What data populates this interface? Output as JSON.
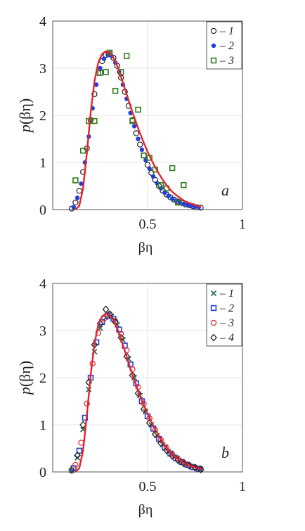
{
  "figure": {
    "y_label_main": "p",
    "y_label_arg": "(βη)",
    "x_label": "βη"
  },
  "chart_data": [
    {
      "type": "scatter",
      "panel_label": "a",
      "xlabel": "βη",
      "ylabel": "p(βη)",
      "xlim": [
        0,
        1
      ],
      "ylim": [
        0,
        4
      ],
      "xticks": [
        "0.5",
        "1"
      ],
      "yticks": [
        "0",
        "1",
        "2",
        "3",
        "4"
      ],
      "grid": true,
      "legend_position": "top-right",
      "series": [
        {
          "name": "1",
          "marker": "open-circle",
          "color": "#222222",
          "x": [
            0.1,
            0.12,
            0.14,
            0.16,
            0.18,
            0.2,
            0.22,
            0.24,
            0.26,
            0.28,
            0.3,
            0.32,
            0.34,
            0.36,
            0.38,
            0.4,
            0.42,
            0.44,
            0.46,
            0.48,
            0.5,
            0.52,
            0.54,
            0.56,
            0.58,
            0.6,
            0.62,
            0.64,
            0.66,
            0.68,
            0.7,
            0.72,
            0.74,
            0.76,
            0.78
          ],
          "y": [
            0.02,
            0.15,
            0.4,
            0.8,
            1.3,
            1.9,
            2.45,
            2.9,
            3.15,
            3.28,
            3.3,
            3.22,
            3.05,
            2.8,
            2.5,
            2.2,
            1.9,
            1.62,
            1.38,
            1.15,
            0.95,
            0.78,
            0.63,
            0.5,
            0.4,
            0.32,
            0.26,
            0.21,
            0.17,
            0.14,
            0.11,
            0.09,
            0.07,
            0.05,
            0.04
          ]
        },
        {
          "name": "2",
          "marker": "filled-dot",
          "color": "#1f3fd6",
          "x": [
            0.11,
            0.13,
            0.15,
            0.17,
            0.19,
            0.21,
            0.23,
            0.25,
            0.27,
            0.29,
            0.31,
            0.33,
            0.35,
            0.37,
            0.39,
            0.41,
            0.43,
            0.45,
            0.47,
            0.49,
            0.51,
            0.53,
            0.55,
            0.57,
            0.59,
            0.61,
            0.63,
            0.65,
            0.67,
            0.69,
            0.71,
            0.73,
            0.75,
            0.77
          ],
          "y": [
            0.05,
            0.25,
            0.55,
            1.0,
            1.55,
            2.15,
            2.65,
            3.0,
            3.2,
            3.28,
            3.26,
            3.12,
            2.92,
            2.65,
            2.35,
            2.05,
            1.77,
            1.5,
            1.27,
            1.05,
            0.87,
            0.7,
            0.56,
            0.45,
            0.36,
            0.29,
            0.23,
            0.19,
            0.15,
            0.12,
            0.1,
            0.08,
            0.06,
            0.05
          ]
        },
        {
          "name": "3",
          "marker": "open-square",
          "color": "#2e7d1e",
          "x": [
            0.12,
            0.16,
            0.19,
            0.22,
            0.25,
            0.28,
            0.3,
            0.33,
            0.36,
            0.39,
            0.42,
            0.45,
            0.48,
            0.51,
            0.54,
            0.57,
            0.6,
            0.63,
            0.66,
            0.69
          ],
          "y": [
            0.62,
            1.25,
            1.88,
            1.88,
            2.9,
            2.92,
            3.33,
            2.52,
            2.92,
            3.26,
            1.88,
            2.12,
            1.15,
            1.1,
            0.85,
            0.52,
            0.45,
            0.88,
            0.15,
            0.52
          ]
        }
      ],
      "fit_curve": {
        "color": "#e0262b",
        "x": [
          0.12,
          0.14,
          0.16,
          0.18,
          0.2,
          0.22,
          0.24,
          0.26,
          0.28,
          0.3,
          0.32,
          0.34,
          0.36,
          0.38,
          0.4,
          0.42,
          0.44,
          0.46,
          0.48,
          0.5,
          0.52,
          0.54,
          0.56,
          0.58,
          0.6,
          0.62,
          0.64,
          0.66,
          0.68,
          0.7,
          0.72,
          0.74,
          0.76,
          0.78
        ],
        "y": [
          0.0,
          0.08,
          0.45,
          1.2,
          2.05,
          2.72,
          3.12,
          3.3,
          3.36,
          3.33,
          3.22,
          3.05,
          2.82,
          2.57,
          2.32,
          2.07,
          1.84,
          1.62,
          1.42,
          1.23,
          1.06,
          0.9,
          0.76,
          0.63,
          0.52,
          0.42,
          0.34,
          0.28,
          0.22,
          0.17,
          0.14,
          0.11,
          0.08,
          0.06
        ]
      }
    },
    {
      "type": "scatter",
      "panel_label": "b",
      "xlabel": "βη",
      "ylabel": "p(βη)",
      "xlim": [
        0,
        1
      ],
      "ylim": [
        0,
        4
      ],
      "xticks": [
        "0.5",
        "1"
      ],
      "yticks": [
        "0",
        "1",
        "2",
        "3",
        "4"
      ],
      "grid": true,
      "legend_position": "top-right",
      "series": [
        {
          "name": "1",
          "marker": "cross",
          "color": "#2f6e5a",
          "x": [
            0.1,
            0.13,
            0.16,
            0.19,
            0.22,
            0.25,
            0.28,
            0.31,
            0.34,
            0.37,
            0.4,
            0.43,
            0.46,
            0.49,
            0.52,
            0.55,
            0.58,
            0.61,
            0.64,
            0.67,
            0.7,
            0.73,
            0.76,
            0.78
          ],
          "y": [
            0.03,
            0.3,
            0.9,
            1.75,
            2.55,
            3.05,
            3.28,
            3.3,
            3.12,
            2.8,
            2.4,
            2.0,
            1.62,
            1.28,
            1.0,
            0.77,
            0.58,
            0.43,
            0.32,
            0.23,
            0.17,
            0.12,
            0.08,
            0.06
          ]
        },
        {
          "name": "2",
          "marker": "open-square",
          "color": "#1f3fd6",
          "x": [
            0.11,
            0.14,
            0.17,
            0.2,
            0.23,
            0.26,
            0.29,
            0.32,
            0.35,
            0.38,
            0.41,
            0.44,
            0.47,
            0.5,
            0.53,
            0.56,
            0.59,
            0.62,
            0.65,
            0.68,
            0.71,
            0.74,
            0.77
          ],
          "y": [
            0.08,
            0.45,
            1.15,
            2.0,
            2.75,
            3.18,
            3.32,
            3.25,
            3.02,
            2.68,
            2.28,
            1.88,
            1.5,
            1.18,
            0.92,
            0.7,
            0.52,
            0.39,
            0.29,
            0.21,
            0.15,
            0.1,
            0.07
          ]
        },
        {
          "name": "3",
          "marker": "open-circle",
          "color": "#e0262b",
          "x": [
            0.12,
            0.15,
            0.18,
            0.21,
            0.24,
            0.27,
            0.3,
            0.33,
            0.36,
            0.39,
            0.42,
            0.45,
            0.48,
            0.51,
            0.54,
            0.57,
            0.6,
            0.63,
            0.66,
            0.69,
            0.72,
            0.75,
            0.78
          ],
          "y": [
            0.15,
            0.62,
            1.45,
            2.3,
            2.95,
            3.25,
            3.35,
            3.2,
            2.93,
            2.58,
            2.18,
            1.8,
            1.45,
            1.14,
            0.89,
            0.68,
            0.51,
            0.38,
            0.28,
            0.2,
            0.14,
            0.1,
            0.06
          ]
        },
        {
          "name": "4",
          "marker": "open-diamond",
          "color": "#222222",
          "x": [
            0.1,
            0.13,
            0.16,
            0.19,
            0.22,
            0.25,
            0.28,
            0.3,
            0.33,
            0.36,
            0.39,
            0.42,
            0.45,
            0.48,
            0.51,
            0.54,
            0.57,
            0.6,
            0.63,
            0.66,
            0.69,
            0.72,
            0.75,
            0.78
          ],
          "y": [
            0.04,
            0.35,
            1.0,
            1.9,
            2.7,
            3.15,
            3.45,
            3.35,
            3.18,
            2.85,
            2.45,
            2.05,
            1.67,
            1.33,
            1.04,
            0.8,
            0.61,
            0.46,
            0.34,
            0.25,
            0.18,
            0.13,
            0.09,
            0.05
          ]
        }
      ],
      "fit_curve": {
        "color": "#e0262b",
        "x": [
          0.12,
          0.14,
          0.16,
          0.18,
          0.2,
          0.22,
          0.24,
          0.26,
          0.28,
          0.3,
          0.32,
          0.34,
          0.36,
          0.38,
          0.4,
          0.42,
          0.44,
          0.46,
          0.48,
          0.5,
          0.52,
          0.54,
          0.56,
          0.58,
          0.6,
          0.62,
          0.64,
          0.66,
          0.68,
          0.7,
          0.72,
          0.74,
          0.76,
          0.78
        ],
        "y": [
          0.0,
          0.08,
          0.45,
          1.2,
          2.05,
          2.72,
          3.12,
          3.3,
          3.36,
          3.33,
          3.22,
          3.05,
          2.82,
          2.57,
          2.32,
          2.07,
          1.84,
          1.62,
          1.42,
          1.23,
          1.06,
          0.9,
          0.76,
          0.63,
          0.52,
          0.42,
          0.34,
          0.28,
          0.22,
          0.17,
          0.14,
          0.11,
          0.08,
          0.06
        ]
      }
    }
  ]
}
